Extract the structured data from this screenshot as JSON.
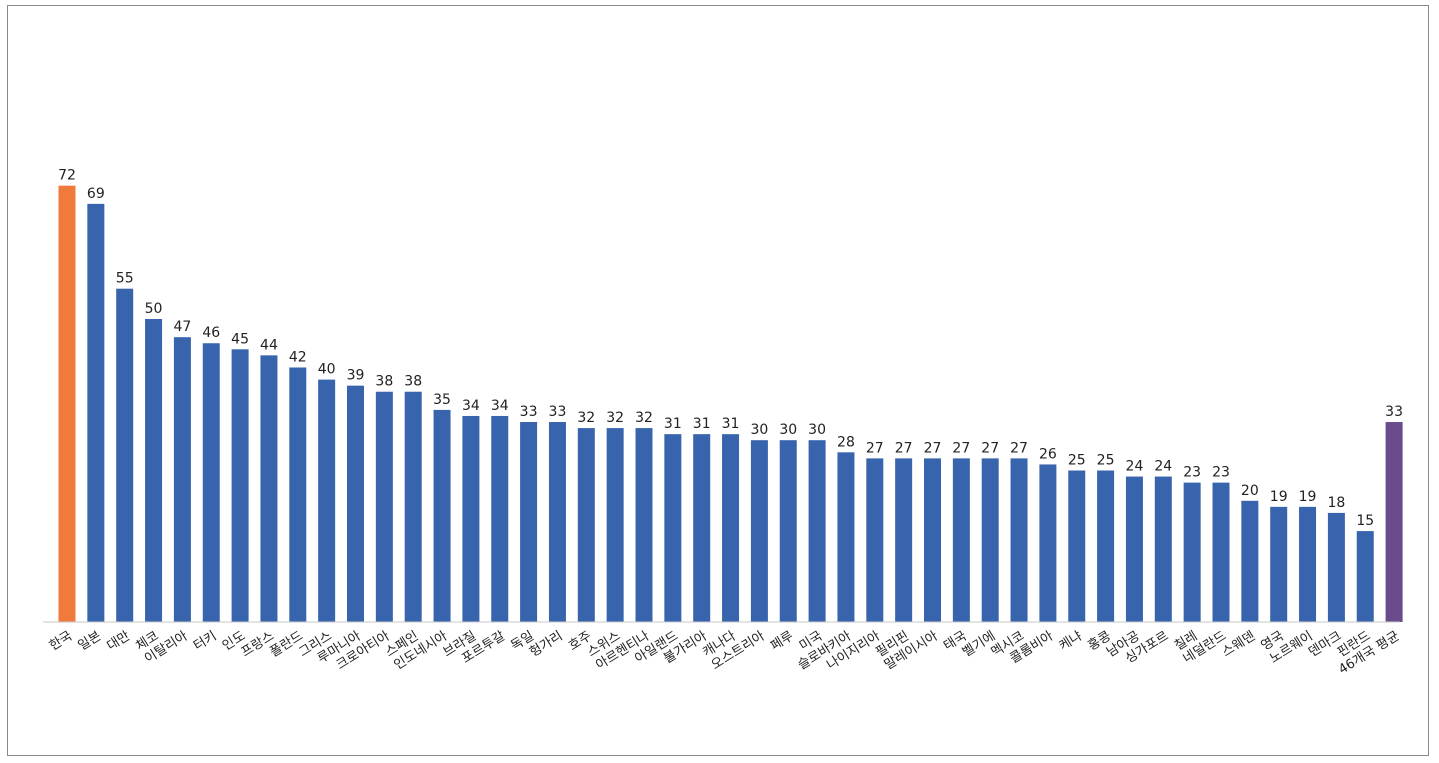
{
  "chart_data": {
    "type": "bar",
    "categories": [
      "한국",
      "일본",
      "대만",
      "체코",
      "이탈리아",
      "터키",
      "인도",
      "프랑스",
      "폴란드",
      "그리스",
      "루마니아",
      "크로아티아",
      "스페인",
      "인도네시아",
      "브라질",
      "포르투갈",
      "독일",
      "헝가리",
      "호주",
      "스위스",
      "아르헨티나",
      "아일랜드",
      "불가리아",
      "캐나다",
      "오스트리아",
      "페루",
      "미국",
      "슬로바키아",
      "나이지리아",
      "필리핀",
      "말레이시아",
      "태국",
      "벨기에",
      "멕시코",
      "콜롬비아",
      "케냐",
      "홍콩",
      "남아공",
      "싱가포르",
      "칠레",
      "네덜란드",
      "스웨덴",
      "영국",
      "노르웨이",
      "덴마크",
      "핀란드",
      "46개국 평균"
    ],
    "values": [
      72,
      69,
      55,
      50,
      47,
      46,
      45,
      44,
      42,
      40,
      39,
      38,
      38,
      35,
      34,
      34,
      33,
      33,
      32,
      32,
      32,
      31,
      31,
      31,
      30,
      30,
      30,
      28,
      27,
      27,
      27,
      27,
      27,
      27,
      26,
      25,
      25,
      24,
      24,
      23,
      23,
      20,
      19,
      19,
      18,
      15,
      33
    ],
    "ylim": [
      0,
      100
    ],
    "grid": false,
    "legend": "none",
    "colors": {
      "default": "#3864ad",
      "highlight_first": "#ef7a3b",
      "highlight_last": "#6a4c8c",
      "axis": "#c8c8c8"
    }
  }
}
